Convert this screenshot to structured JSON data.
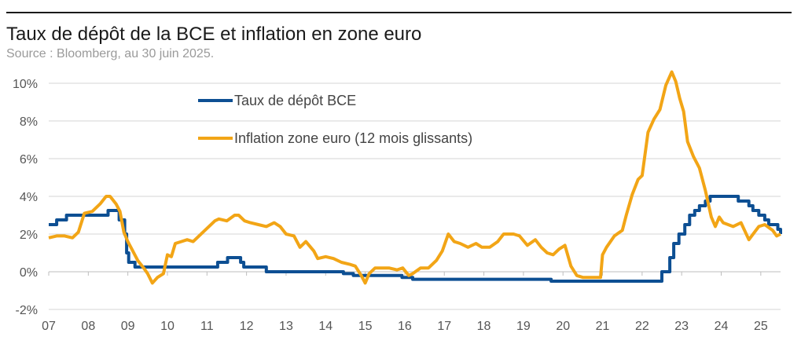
{
  "title": "Taux de dépôt de la BCE et inflation en zone euro",
  "subtitle": "Source : Bloomberg, au 30 juin 2025.",
  "colors": {
    "deposit": "#0d4f93",
    "inflation": "#f2a516",
    "grid": "#d6d6d6",
    "axis_text": "#555555",
    "zero_line": "#bdbdbd"
  },
  "chart_data": {
    "type": "line",
    "title": "Taux de dépôt de la BCE et inflation en zone euro",
    "subtitle": "Source : Bloomberg, au 30 juin 2025.",
    "xlabel": "",
    "ylabel": "",
    "xlim": [
      2007.0,
      2025.5
    ],
    "ylim": [
      -2,
      10
    ],
    "grid": true,
    "legend_position": "top-left",
    "x_tick_labels": [
      "07",
      "08",
      "09",
      "10",
      "11",
      "12",
      "13",
      "14",
      "15",
      "16",
      "17",
      "18",
      "19",
      "20",
      "21",
      "22",
      "23",
      "24",
      "25"
    ],
    "y_tick_labels": [
      "-2%",
      "0%",
      "2%",
      "4%",
      "6%",
      "8%",
      "10%"
    ],
    "y_tick_values": [
      -2,
      0,
      2,
      4,
      6,
      8,
      10
    ],
    "series": [
      {
        "name": "Taux de dépôt BCE",
        "color": "#0d4f93",
        "step": true,
        "x": [
          2007.0,
          2007.2,
          2007.45,
          2008.5,
          2008.78,
          2008.92,
          2008.97,
          2009.02,
          2009.18,
          2009.35,
          2011.27,
          2011.52,
          2011.85,
          2011.93,
          2012.5,
          2014.45,
          2014.7,
          2015.93,
          2016.2,
          2019.7,
          2022.5,
          2022.7,
          2022.8,
          2022.93,
          2023.08,
          2023.2,
          2023.33,
          2023.45,
          2023.6,
          2023.72,
          2024.43,
          2024.7,
          2024.8,
          2024.95,
          2025.1,
          2025.2,
          2025.43,
          2025.5
        ],
        "values": [
          2.5,
          2.75,
          3.0,
          3.25,
          2.75,
          2.0,
          1.0,
          0.5,
          0.25,
          0.25,
          0.5,
          0.75,
          0.5,
          0.25,
          0.0,
          -0.1,
          -0.2,
          -0.3,
          -0.4,
          -0.5,
          0.0,
          0.75,
          1.5,
          2.0,
          2.5,
          3.0,
          3.25,
          3.5,
          3.75,
          4.0,
          3.75,
          3.5,
          3.25,
          3.0,
          2.75,
          2.5,
          2.25,
          2.0
        ]
      },
      {
        "name": "Inflation zone euro (12 mois glissants)",
        "color": "#f2a516",
        "step": false,
        "x": [
          2007.0,
          2007.2,
          2007.4,
          2007.6,
          2007.75,
          2007.9,
          2008.1,
          2008.3,
          2008.45,
          2008.55,
          2008.7,
          2008.8,
          2008.9,
          2009.0,
          2009.1,
          2009.25,
          2009.4,
          2009.5,
          2009.62,
          2009.75,
          2009.9,
          2010.0,
          2010.1,
          2010.2,
          2010.35,
          2010.5,
          2010.65,
          2010.8,
          2010.95,
          2011.2,
          2011.3,
          2011.5,
          2011.7,
          2011.8,
          2011.95,
          2012.1,
          2012.3,
          2012.5,
          2012.7,
          2012.85,
          2013.0,
          2013.2,
          2013.35,
          2013.5,
          2013.7,
          2013.8,
          2014.0,
          2014.2,
          2014.4,
          2014.6,
          2014.75,
          2014.9,
          2015.0,
          2015.1,
          2015.25,
          2015.4,
          2015.6,
          2015.8,
          2015.95,
          2016.1,
          2016.2,
          2016.4,
          2016.6,
          2016.8,
          2016.95,
          2017.1,
          2017.25,
          2017.4,
          2017.6,
          2017.8,
          2017.95,
          2018.15,
          2018.35,
          2018.5,
          2018.75,
          2018.9,
          2019.1,
          2019.3,
          2019.45,
          2019.6,
          2019.75,
          2019.9,
          2020.05,
          2020.2,
          2020.35,
          2020.5,
          2020.65,
          2020.8,
          2020.95,
          2021.0,
          2021.1,
          2021.3,
          2021.5,
          2021.6,
          2021.75,
          2021.9,
          2022.0,
          2022.15,
          2022.3,
          2022.45,
          2022.6,
          2022.75,
          2022.85,
          2022.95,
          2023.05,
          2023.15,
          2023.3,
          2023.45,
          2023.6,
          2023.75,
          2023.85,
          2023.95,
          2024.05,
          2024.3,
          2024.5,
          2024.7,
          2024.95,
          2025.1,
          2025.3,
          2025.4,
          2025.5
        ],
        "values": [
          1.8,
          1.9,
          1.9,
          1.8,
          2.1,
          3.1,
          3.2,
          3.6,
          4.0,
          4.0,
          3.6,
          3.2,
          2.1,
          1.6,
          1.2,
          0.6,
          0.2,
          -0.1,
          -0.6,
          -0.3,
          -0.1,
          0.9,
          0.8,
          1.5,
          1.6,
          1.7,
          1.6,
          1.9,
          2.2,
          2.7,
          2.8,
          2.7,
          3.0,
          3.0,
          2.7,
          2.6,
          2.5,
          2.4,
          2.6,
          2.4,
          2.0,
          1.9,
          1.3,
          1.6,
          1.1,
          0.7,
          0.8,
          0.7,
          0.5,
          0.4,
          0.3,
          -0.2,
          -0.6,
          -0.1,
          0.2,
          0.2,
          0.2,
          0.1,
          0.2,
          -0.2,
          -0.1,
          0.2,
          0.2,
          0.6,
          1.1,
          2.0,
          1.6,
          1.5,
          1.3,
          1.5,
          1.3,
          1.3,
          1.6,
          2.0,
          2.0,
          1.9,
          1.4,
          1.7,
          1.3,
          1.0,
          0.9,
          1.2,
          1.4,
          0.3,
          -0.2,
          -0.3,
          -0.3,
          -0.3,
          -0.3,
          0.9,
          1.3,
          1.9,
          2.2,
          3.0,
          4.1,
          4.9,
          5.1,
          7.4,
          8.1,
          8.6,
          9.9,
          10.6,
          10.1,
          9.2,
          8.5,
          6.9,
          6.1,
          5.5,
          4.3,
          2.9,
          2.4,
          2.9,
          2.6,
          2.4,
          2.6,
          1.7,
          2.4,
          2.5,
          2.2,
          1.9,
          2.0
        ]
      }
    ]
  }
}
